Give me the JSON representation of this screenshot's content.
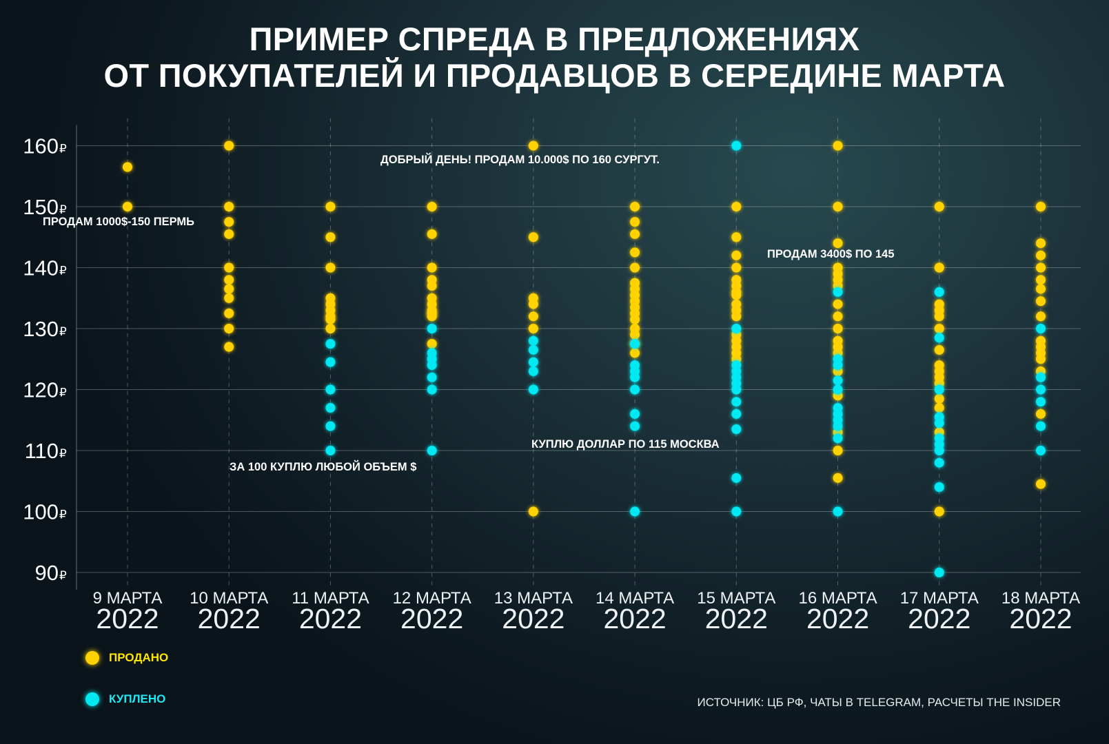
{
  "title": {
    "line1": "ПРИМЕР СПРЕДА В ПРЕДЛОЖЕНИЯХ",
    "line2": "ОТ ПОКУПАТЕЛЕЙ И ПРОДАВЦОВ В СЕРЕДИНЕ МАРТА"
  },
  "annotations": {
    "a1": "ПРОДАМ 1000$-150 ПЕРМЬ",
    "a2": "ДОБРЫЙ ДЕНЬ! ПРОДАМ 10.000$ ПО 160 СУРГУТ.",
    "a3": "ПРОДАМ 3400$ ПО 145",
    "a4": "КУПЛЮ ДОЛЛАР ПО 115 МОСКВА",
    "a5": "ЗА 100 КУПЛЮ ЛЮБОЙ ОБЪЕМ $"
  },
  "legend": {
    "sold": "ПРОДАНО",
    "bought": "КУПЛЕНО"
  },
  "source": "ИСТОЧНИК: ЦБ РФ, ЧАТЫ В TELEGRAM, РАСЧЕТЫ THE INSIDER",
  "colors": {
    "sold": "#ffd200",
    "bought": "#00e8f2",
    "legend_sold_text": "#ffe600",
    "legend_bought_text": "#22e8f2"
  },
  "chart_data": {
    "type": "scatter",
    "y_ticks": [
      160,
      150,
      140,
      130,
      120,
      110,
      100,
      90
    ],
    "y_tick_suffix": "₽",
    "ylim": [
      90,
      160
    ],
    "grid": true,
    "legend_placement": "bottom-left",
    "categories": [
      {
        "day": "9 МАРТА",
        "year": "2022"
      },
      {
        "day": "10 МАРТА",
        "year": "2022"
      },
      {
        "day": "11 МАРТА",
        "year": "2022"
      },
      {
        "day": "12 МАРТА",
        "year": "2022"
      },
      {
        "day": "13 МАРТА",
        "year": "2022"
      },
      {
        "day": "14 МАРТА",
        "year": "2022"
      },
      {
        "day": "15 МАРТА",
        "year": "2022"
      },
      {
        "day": "16 МАРТА",
        "year": "2022"
      },
      {
        "day": "17 МАРТА",
        "year": "2022"
      },
      {
        "day": "18 МАРТА",
        "year": "2022"
      }
    ],
    "series": [
      {
        "name": "ПРОДАНО",
        "values": [
          [
            156.5,
            150
          ],
          [
            160,
            150,
            147.5,
            145.5,
            140,
            138,
            136.5,
            135,
            132.5,
            130,
            127
          ],
          [
            150,
            145,
            140,
            135,
            134,
            133,
            132,
            131.5,
            130
          ],
          [
            150,
            145.5,
            140,
            138,
            137,
            135,
            134,
            133,
            132.5,
            132,
            127.5
          ],
          [
            160,
            145,
            135,
            134,
            132,
            130,
            100
          ],
          [
            150,
            147.5,
            145.5,
            142.5,
            140,
            137.5,
            136.5,
            135.5,
            134.5,
            133.5,
            132.5,
            131.5,
            130,
            129,
            127.5,
            126
          ],
          [
            150,
            145,
            142,
            140,
            138,
            137,
            136,
            135.5,
            134,
            133,
            132,
            129,
            128,
            127,
            126,
            125
          ],
          [
            160,
            150,
            144,
            140,
            139,
            138,
            137,
            134,
            132,
            130,
            128,
            127,
            126,
            123,
            119,
            113,
            110,
            105.5
          ],
          [
            150,
            140,
            134,
            133,
            132,
            130,
            126.5,
            124,
            123,
            122,
            121,
            118.5,
            117,
            113,
            100
          ],
          [
            150,
            144,
            142,
            140,
            138,
            136.5,
            134.5,
            132,
            128,
            127,
            126,
            125,
            123,
            116,
            104.5
          ]
        ]
      },
      {
        "name": "КУПЛЕНО",
        "values": [
          [],
          [],
          [
            127.5,
            124.5,
            120,
            117,
            114,
            110
          ],
          [
            130,
            126,
            125,
            124,
            122,
            120,
            110
          ],
          [
            128,
            126.5,
            124.5,
            123,
            120
          ],
          [
            127.5,
            124,
            123,
            122,
            120,
            116,
            114,
            100
          ],
          [
            160,
            130,
            124,
            123,
            122,
            121,
            120,
            118,
            116,
            113.5,
            105.5,
            100
          ],
          [
            136,
            125,
            124,
            121.5,
            120,
            117,
            116,
            115,
            114,
            112,
            100
          ],
          [
            136,
            128.5,
            120,
            115.5,
            114.5,
            112,
            111,
            110,
            108,
            104,
            90
          ],
          [
            130,
            122,
            120,
            118,
            114,
            110
          ]
        ]
      }
    ]
  }
}
